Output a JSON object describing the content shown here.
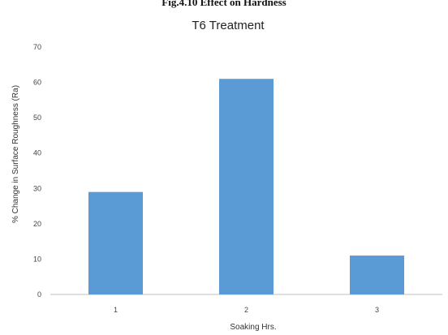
{
  "figure_caption": "Fig.4.10 Effect on Hardness",
  "chart_data": {
    "type": "bar",
    "title": "T6 Treatment",
    "xlabel": "Soaking Hrs.",
    "ylabel": "% Change in Surface Roughness (Ra)",
    "categories": [
      "1",
      "2",
      "3"
    ],
    "values": [
      29,
      61,
      11
    ],
    "ylim": [
      0,
      70
    ],
    "yticks": [
      0,
      10,
      20,
      30,
      40,
      50,
      60,
      70
    ],
    "grid": false,
    "legend": "none",
    "bar_color": "#5b9bd5"
  }
}
